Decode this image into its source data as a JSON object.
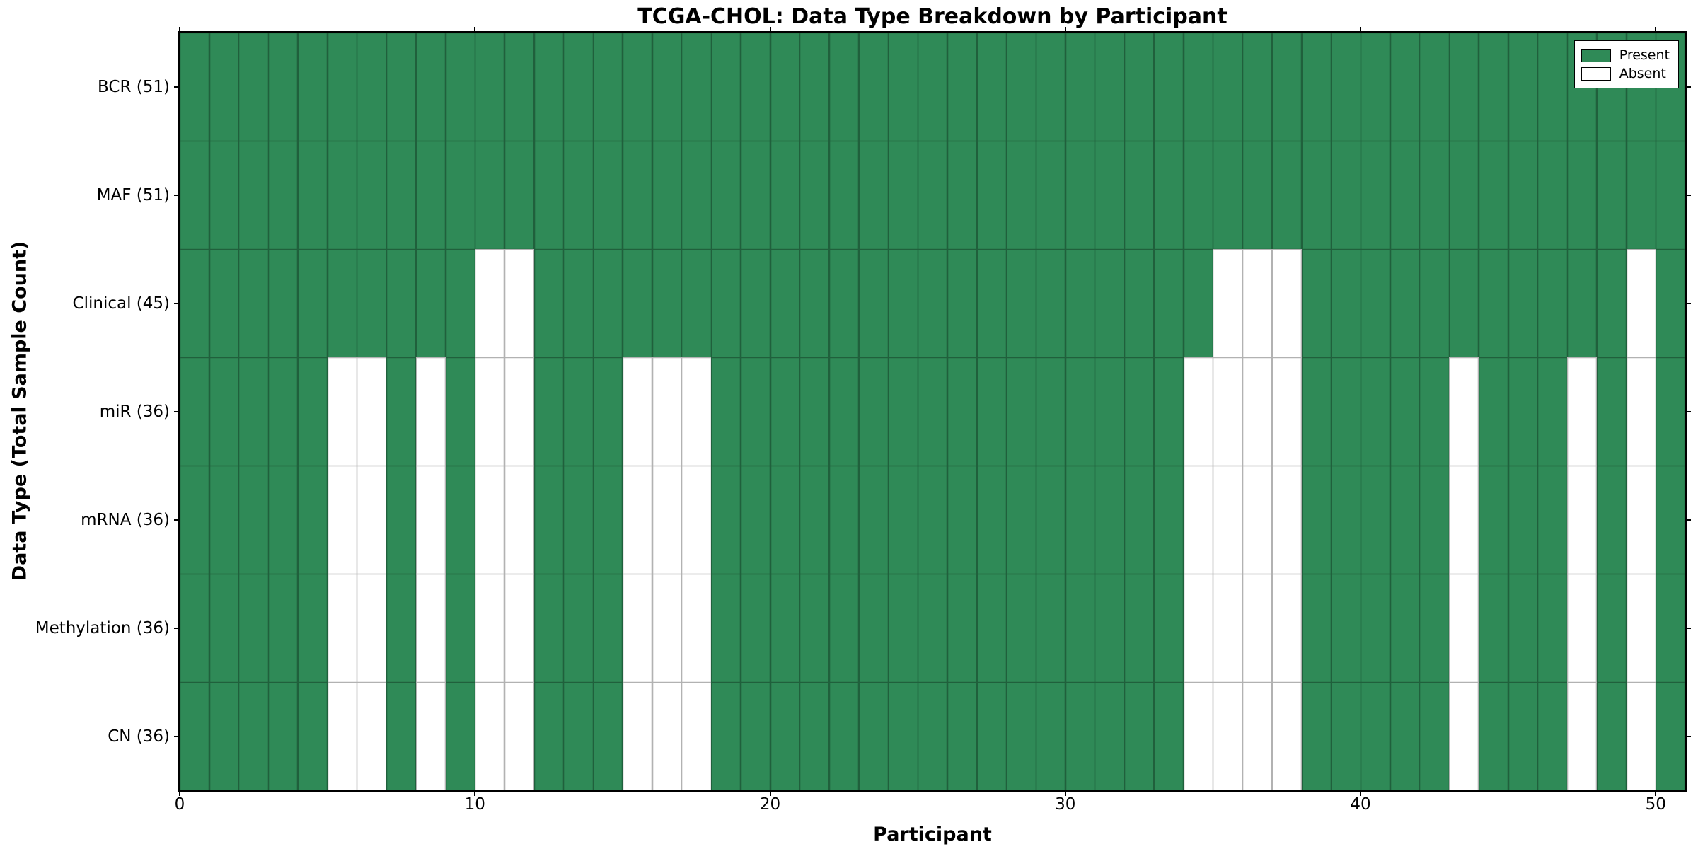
{
  "chart_data": {
    "type": "heatmap",
    "title": "TCGA-CHOL: Data Type Breakdown by Participant",
    "xlabel": "Participant",
    "ylabel": "Data Type (Total Sample Count)",
    "n_participants": 51,
    "x_range": [
      0,
      51
    ],
    "xticks": [
      0,
      10,
      20,
      30,
      40,
      50
    ],
    "grid": "cell-edges",
    "rows": [
      {
        "label": "BCR (51)",
        "data_type": "BCR",
        "present_count": 51,
        "absent_participants": []
      },
      {
        "label": "MAF (51)",
        "data_type": "MAF",
        "present_count": 51,
        "absent_participants": []
      },
      {
        "label": "Clinical (45)",
        "data_type": "Clinical",
        "present_count": 45,
        "absent_participants": [
          10,
          11,
          35,
          36,
          37,
          49
        ]
      },
      {
        "label": "miR (36)",
        "data_type": "miR",
        "present_count": 36,
        "absent_participants": [
          5,
          6,
          8,
          10,
          11,
          15,
          16,
          17,
          34,
          35,
          36,
          37,
          43,
          47,
          49
        ]
      },
      {
        "label": "mRNA (36)",
        "data_type": "mRNA",
        "present_count": 36,
        "absent_participants": [
          5,
          6,
          8,
          10,
          11,
          15,
          16,
          17,
          34,
          35,
          36,
          37,
          43,
          47,
          49
        ]
      },
      {
        "label": "Methylation (36)",
        "data_type": "Methylation",
        "present_count": 36,
        "absent_participants": [
          5,
          6,
          8,
          10,
          11,
          15,
          16,
          17,
          34,
          35,
          36,
          37,
          43,
          47,
          49
        ]
      },
      {
        "label": "CN (36)",
        "data_type": "CN",
        "present_count": 36,
        "absent_participants": [
          5,
          6,
          8,
          10,
          11,
          15,
          16,
          17,
          34,
          35,
          36,
          37,
          43,
          47,
          49
        ]
      }
    ],
    "legend": {
      "position": "upper-right",
      "present_label": "Present",
      "absent_label": "Absent"
    },
    "colors": {
      "present": "#2F8A57",
      "absent": "#FFFFFF",
      "cell_edge": "#000000",
      "cell_edge_alpha": 0.3,
      "spine": "#000000",
      "text": "#000000",
      "background": "#FFFFFF"
    }
  }
}
